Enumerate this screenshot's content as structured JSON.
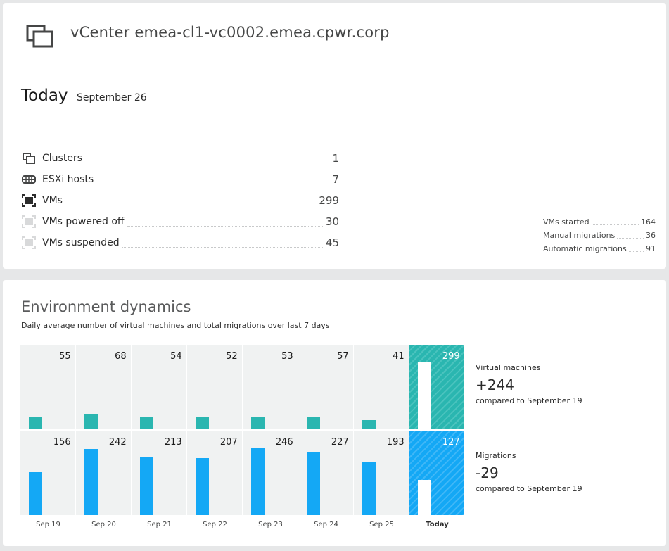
{
  "header": {
    "title": "vCenter emea-cl1-vc0002.emea.cpwr.corp",
    "icon": "vcenter-icon"
  },
  "today": {
    "label": "Today",
    "date": "September 26"
  },
  "stats": [
    {
      "label": "Clusters",
      "value": "1",
      "icon": "clusters-icon"
    },
    {
      "label": "ESXi hosts",
      "value": "7",
      "icon": "esxi-host-icon"
    },
    {
      "label": "VMs",
      "value": "299",
      "icon": "vm-icon"
    },
    {
      "label": "VMs powered off",
      "value": "30",
      "icon": "vm-powered-off-icon"
    },
    {
      "label": "VMs suspended",
      "value": "45",
      "icon": "vm-suspended-icon"
    }
  ],
  "mini_stats": [
    {
      "label": "VMs started",
      "value": "164"
    },
    {
      "label": "Manual migrations",
      "value": "36"
    },
    {
      "label": "Automatic migrations",
      "value": "91"
    }
  ],
  "environment": {
    "title": "Environment dynamics",
    "subtitle": "Daily average number of virtual machines and total migrations over last 7 days",
    "virtual_machines": {
      "title": "Virtual machines",
      "delta": "+244",
      "note": "compared to September 19"
    },
    "migrations": {
      "title": "Migrations",
      "delta": "-29",
      "note": "compared to September 19"
    }
  },
  "colors": {
    "vm": "#2ab6b0",
    "migrations": "#14a8f5"
  },
  "chart_data": {
    "type": "bar",
    "categories": [
      "Sep 19",
      "Sep 20",
      "Sep 21",
      "Sep 22",
      "Sep 23",
      "Sep 24",
      "Sep 25",
      "Today"
    ],
    "series": [
      {
        "name": "Virtual machines",
        "values": [
          55,
          68,
          54,
          52,
          53,
          57,
          41,
          299
        ]
      },
      {
        "name": "Migrations",
        "values": [
          156,
          242,
          213,
          207,
          246,
          227,
          193,
          127
        ]
      }
    ]
  }
}
